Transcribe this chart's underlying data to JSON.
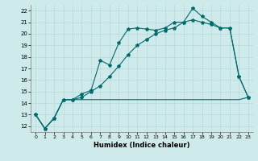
{
  "xlabel": "Humidex (Indice chaleur)",
  "bg_color": "#ceeaea",
  "line_color": "#006b6b",
  "grid_color": "#b8d8d8",
  "xlim": [
    -0.5,
    23.5
  ],
  "ylim": [
    11.5,
    22.5
  ],
  "xticks": [
    0,
    1,
    2,
    3,
    4,
    5,
    6,
    7,
    8,
    9,
    10,
    11,
    12,
    13,
    14,
    15,
    16,
    17,
    18,
    19,
    20,
    21,
    22,
    23
  ],
  "yticks": [
    12,
    13,
    14,
    15,
    16,
    17,
    18,
    19,
    20,
    21,
    22
  ],
  "line1_x": [
    0,
    1,
    2,
    3,
    4,
    5,
    6,
    7,
    8,
    9,
    10,
    11,
    12,
    13,
    14,
    15,
    16,
    17,
    18,
    19,
    20,
    21,
    22,
    23
  ],
  "line1_y": [
    13.0,
    11.8,
    12.7,
    14.3,
    14.3,
    14.8,
    15.1,
    17.7,
    17.3,
    19.2,
    20.4,
    20.5,
    20.4,
    20.3,
    20.5,
    21.0,
    21.0,
    22.2,
    21.5,
    21.0,
    20.5,
    20.5,
    16.3,
    14.5
  ],
  "line2_x": [
    0,
    1,
    2,
    3,
    4,
    5,
    6,
    7,
    8,
    9,
    10,
    11,
    12,
    13,
    14,
    15,
    16,
    17,
    18,
    19,
    20,
    21,
    22,
    23
  ],
  "line2_y": [
    13.0,
    11.8,
    12.7,
    14.3,
    14.3,
    14.3,
    14.3,
    14.3,
    14.3,
    14.3,
    14.3,
    14.3,
    14.3,
    14.3,
    14.3,
    14.3,
    14.3,
    14.3,
    14.3,
    14.3,
    14.3,
    14.3,
    14.3,
    14.5
  ],
  "line3_x": [
    0,
    1,
    2,
    3,
    4,
    5,
    6,
    7,
    8,
    9,
    10,
    11,
    12,
    13,
    14,
    15,
    16,
    17,
    18,
    19,
    20,
    21,
    22,
    23
  ],
  "line3_y": [
    13.0,
    11.8,
    12.7,
    14.3,
    14.3,
    14.5,
    15.0,
    15.5,
    16.3,
    17.2,
    18.2,
    19.0,
    19.5,
    20.0,
    20.3,
    20.5,
    21.0,
    21.2,
    21.0,
    20.8,
    20.5,
    20.5,
    16.3,
    14.5
  ]
}
